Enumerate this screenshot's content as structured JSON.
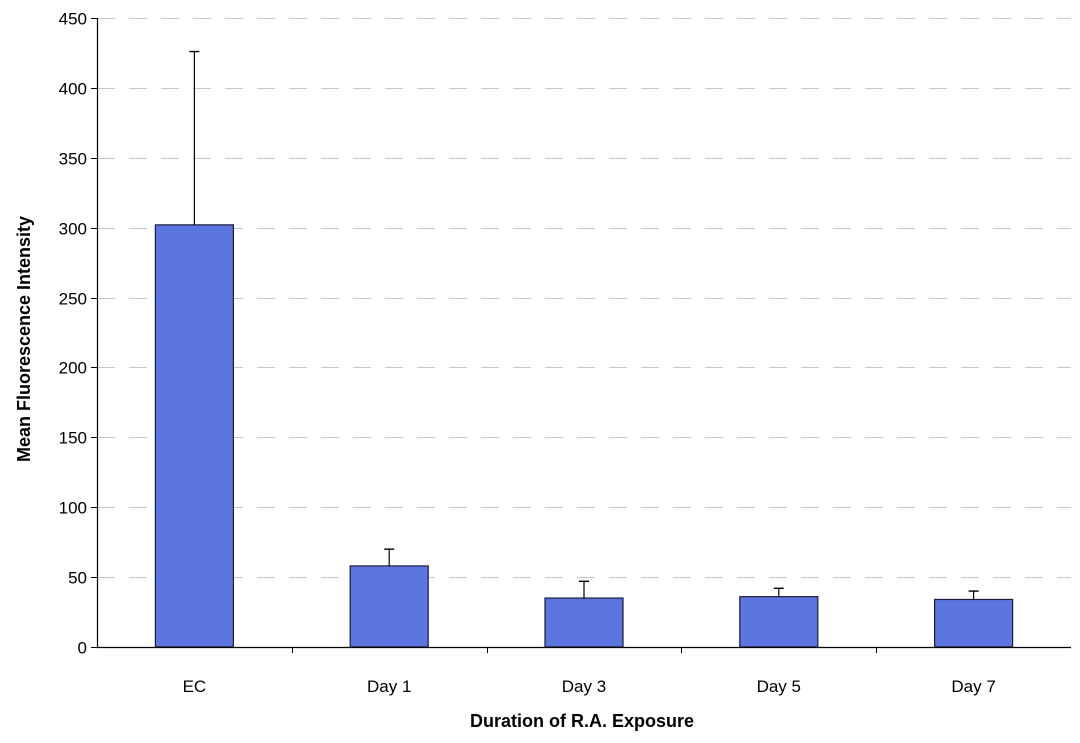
{
  "chart_data": {
    "type": "bar",
    "title": "",
    "xlabel": "Duration of R.A. Exposure",
    "ylabel": "Mean Fluorescence Intensity",
    "categories": [
      "EC",
      "Day 1",
      "Day 3",
      "Day 5",
      "Day 7"
    ],
    "series": [
      {
        "values": [
          302,
          58,
          35,
          36,
          34
        ],
        "error_upper": [
          124,
          12,
          12,
          6,
          6
        ]
      }
    ],
    "ylim": [
      0,
      450
    ],
    "yticks": [
      0,
      50,
      100,
      150,
      200,
      250,
      300,
      350,
      400,
      450
    ],
    "grid": true,
    "legend": "none",
    "colors": {
      "bar_fill": "#5B77DF",
      "bar_stroke": "#1a1a40",
      "axis": "#000000",
      "grid": "#c8c8c8"
    }
  }
}
